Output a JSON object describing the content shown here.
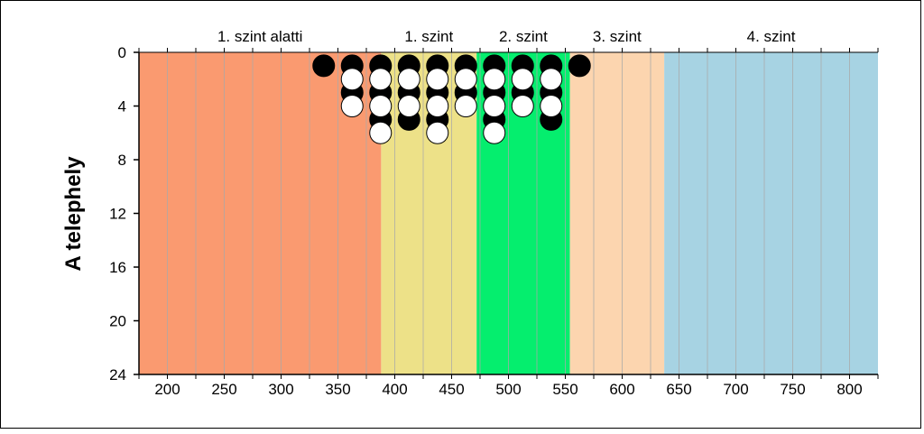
{
  "chart_data": {
    "type": "scatter",
    "title": "",
    "xlabel": "",
    "ylabel": "A telephely",
    "xlim": [
      175,
      825
    ],
    "ylim": [
      0,
      24
    ],
    "y_inverted": true,
    "x_ticks": [
      200,
      250,
      300,
      350,
      400,
      450,
      500,
      550,
      600,
      650,
      700,
      750,
      800
    ],
    "y_ticks": [
      0,
      4,
      8,
      12,
      16,
      20,
      24
    ],
    "x_minor_grid_step": 25,
    "grid": "vertical",
    "bands": [
      {
        "label": "1. szint alatti",
        "start": 175,
        "end": 388,
        "color": "#fa9a70"
      },
      {
        "label": "1. szint",
        "start": 388,
        "end": 472,
        "color": "#ede188"
      },
      {
        "label": "2. szint",
        "start": 472,
        "end": 554,
        "color": "#05ee6e"
      },
      {
        "label": "3. szint",
        "start": 554,
        "end": 637,
        "color": "#fcd5af"
      },
      {
        "label": "4. szint",
        "start": 637,
        "end": 825,
        "color": "#a7d3e3"
      }
    ],
    "series": [
      {
        "marker_fill": "#000000",
        "points": [
          {
            "x": 337.5,
            "y": 1
          },
          {
            "x": 362.5,
            "y": 1
          },
          {
            "x": 362.5,
            "y": 3
          },
          {
            "x": 387.5,
            "y": 1
          },
          {
            "x": 387.5,
            "y": 3
          },
          {
            "x": 387.5,
            "y": 5
          },
          {
            "x": 412.5,
            "y": 1
          },
          {
            "x": 412.5,
            "y": 3
          },
          {
            "x": 412.5,
            "y": 5
          },
          {
            "x": 437.5,
            "y": 1
          },
          {
            "x": 437.5,
            "y": 3
          },
          {
            "x": 437.5,
            "y": 5
          },
          {
            "x": 462.5,
            "y": 1
          },
          {
            "x": 462.5,
            "y": 3
          },
          {
            "x": 487.5,
            "y": 1
          },
          {
            "x": 487.5,
            "y": 3
          },
          {
            "x": 487.5,
            "y": 5
          },
          {
            "x": 512.5,
            "y": 1
          },
          {
            "x": 512.5,
            "y": 3
          },
          {
            "x": 537.5,
            "y": 1
          },
          {
            "x": 537.5,
            "y": 3
          },
          {
            "x": 537.5,
            "y": 5
          },
          {
            "x": 562.5,
            "y": 1
          }
        ]
      },
      {
        "marker_fill": "#ffffff",
        "points": [
          {
            "x": 362.5,
            "y": 2
          },
          {
            "x": 362.5,
            "y": 4
          },
          {
            "x": 387.5,
            "y": 2
          },
          {
            "x": 387.5,
            "y": 4
          },
          {
            "x": 387.5,
            "y": 6
          },
          {
            "x": 412.5,
            "y": 2
          },
          {
            "x": 412.5,
            "y": 4
          },
          {
            "x": 437.5,
            "y": 2
          },
          {
            "x": 437.5,
            "y": 4
          },
          {
            "x": 437.5,
            "y": 6
          },
          {
            "x": 462.5,
            "y": 2
          },
          {
            "x": 462.5,
            "y": 4
          },
          {
            "x": 487.5,
            "y": 2
          },
          {
            "x": 487.5,
            "y": 4
          },
          {
            "x": 487.5,
            "y": 6
          },
          {
            "x": 512.5,
            "y": 2
          },
          {
            "x": 512.5,
            "y": 4
          },
          {
            "x": 537.5,
            "y": 2
          },
          {
            "x": 537.5,
            "y": 4
          }
        ]
      }
    ]
  }
}
